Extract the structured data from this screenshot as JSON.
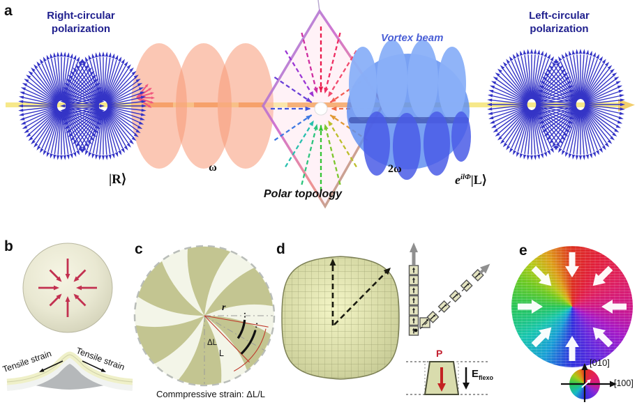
{
  "panel_a": {
    "label": "a",
    "right_polarization": "Right-circular polarization",
    "left_polarization": "Left-circular polarization",
    "vortex_beam": "Vortex beam",
    "omega": "ω",
    "two_omega": "2ω",
    "ket_r": "|R⟩",
    "polar_topology": "Polar topology",
    "ket_l_base": "e",
    "ket_l_exponent": "ilΦ",
    "ket_l": "|L⟩"
  },
  "panel_b": {
    "label": "b",
    "tensile_left": "Tensile strain",
    "tensile_right": "Tensile strain"
  },
  "panel_c": {
    "label": "c",
    "radius_label": "r",
    "delta_l_label": "ΔL",
    "l_label": "L",
    "caption": "Commpressive strain: ΔL/L"
  },
  "panel_d": {
    "label": "d",
    "polarization_label": "P",
    "field_label": "E",
    "field_subscript": "flexo"
  },
  "panel_e": {
    "label": "e",
    "axis_up": "[010]",
    "axis_right": "[100]"
  },
  "colors": {
    "navy_text": "#20208e",
    "vortex_blue": "#4a5fd6",
    "starburst_blue": "#3434c6",
    "beam_yellow": "#f6e88a",
    "beam_orange": "#f2a95c",
    "pump_ellipse": "#f79976",
    "vortex_body": "#5b8cf0",
    "khaki_wedge": "#c3c591",
    "strain_red": "#c23050",
    "gray_arrow": "#8f8f8f"
  }
}
